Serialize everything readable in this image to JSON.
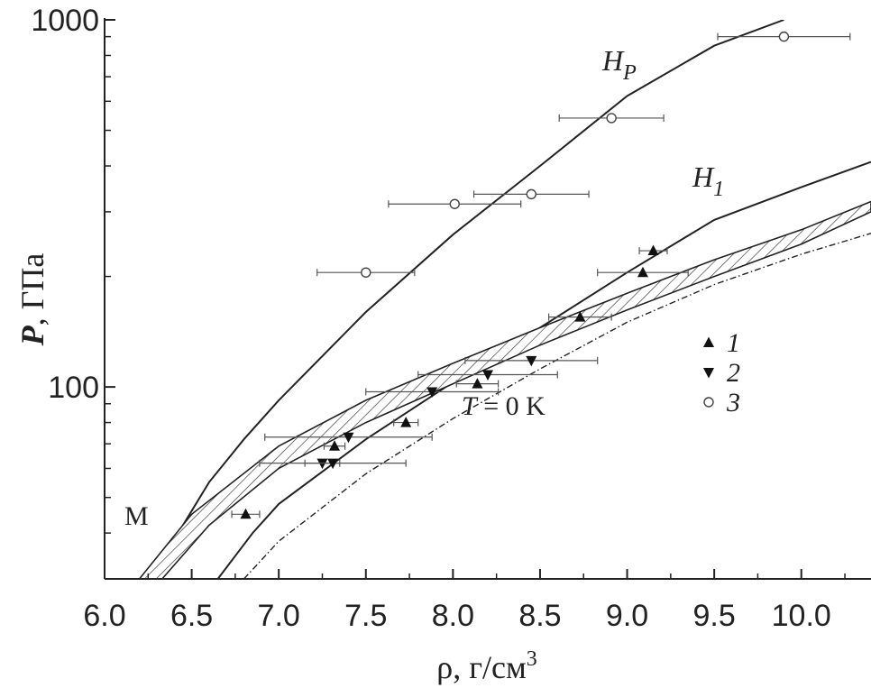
{
  "chart_data": {
    "type": "scatter",
    "title": "",
    "xlabel": "ρ, г/см",
    "xlabel_sup": "3",
    "ylabel_italic": "P",
    "ylabel_rest": ", ГПа",
    "xlim": [
      6.0,
      10.4
    ],
    "ylim": [
      30,
      1000
    ],
    "y_scale": "log",
    "grid": false,
    "x_ticks": [
      "6.0",
      "6.5",
      "7.0",
      "7.5",
      "8.0",
      "8.5",
      "9.0",
      "9.5",
      "10.0"
    ],
    "y_ticks": [
      "100",
      "1000"
    ],
    "curves": [
      {
        "name": "H_P",
        "label_main": "H",
        "label_sub": "P",
        "style": "solid",
        "points": [
          [
            6.32,
            30
          ],
          [
            6.45,
            42
          ],
          [
            6.6,
            55
          ],
          [
            6.8,
            72
          ],
          [
            7.0,
            92
          ],
          [
            7.5,
            160
          ],
          [
            8.0,
            260
          ],
          [
            8.5,
            400
          ],
          [
            9.0,
            620
          ],
          [
            9.5,
            850
          ],
          [
            9.9,
            1000
          ]
        ]
      },
      {
        "name": "H_1",
        "label_main": "H",
        "label_sub": "1",
        "style": "solid",
        "points": [
          [
            6.65,
            30
          ],
          [
            6.85,
            40
          ],
          [
            7.0,
            48
          ],
          [
            7.5,
            72
          ],
          [
            8.0,
            103
          ],
          [
            8.5,
            145
          ],
          [
            9.0,
            205
          ],
          [
            9.5,
            285
          ],
          [
            10.0,
            350
          ],
          [
            10.4,
            410
          ]
        ]
      },
      {
        "name": "T = 0 K",
        "label_main": "T",
        "label_rest": " = 0 K",
        "style": "dashdot",
        "points": [
          [
            6.8,
            30
          ],
          [
            7.0,
            38
          ],
          [
            7.5,
            58
          ],
          [
            8.0,
            82
          ],
          [
            8.5,
            112
          ],
          [
            9.0,
            150
          ],
          [
            9.5,
            190
          ],
          [
            10.0,
            230
          ],
          [
            10.4,
            262
          ]
        ]
      },
      {
        "name": "M",
        "label_main": "M",
        "style": "band",
        "upper": [
          [
            6.2,
            30
          ],
          [
            6.5,
            45
          ],
          [
            7.0,
            69
          ],
          [
            7.5,
            92
          ],
          [
            8.0,
            116
          ],
          [
            8.5,
            145
          ],
          [
            9.0,
            180
          ],
          [
            9.5,
            222
          ],
          [
            10.0,
            268
          ],
          [
            10.4,
            320
          ]
        ],
        "lower": [
          [
            6.33,
            30
          ],
          [
            6.6,
            42
          ],
          [
            7.0,
            60
          ],
          [
            7.5,
            80
          ],
          [
            8.0,
            102
          ],
          [
            8.5,
            130
          ],
          [
            9.0,
            162
          ],
          [
            9.5,
            200
          ],
          [
            10.0,
            245
          ],
          [
            10.4,
            300
          ]
        ]
      }
    ],
    "series": [
      {
        "name": "1",
        "marker": "triangle-up",
        "points": [
          {
            "x": 6.81,
            "y": 45,
            "xerr": 0.08
          },
          {
            "x": 7.32,
            "y": 69,
            "xerr": 0.06
          },
          {
            "x": 7.73,
            "y": 80,
            "xerr": 0.07
          },
          {
            "x": 8.14,
            "y": 102,
            "xerr": 0.12
          },
          {
            "x": 8.73,
            "y": 155,
            "xerr": 0.18
          },
          {
            "x": 9.09,
            "y": 205,
            "xerr": 0.26
          },
          {
            "x": 9.15,
            "y": 235,
            "xerr": 0.08
          }
        ]
      },
      {
        "name": "2",
        "marker": "triangle-down",
        "points": [
          {
            "x": 7.25,
            "y": 62,
            "xerr": 0.1
          },
          {
            "x": 7.31,
            "y": 62,
            "xerr": 0.42
          },
          {
            "x": 7.4,
            "y": 73,
            "xerr": 0.48
          },
          {
            "x": 7.88,
            "y": 97,
            "xerr": 0.38
          },
          {
            "x": 8.2,
            "y": 108,
            "xerr": 0.4
          },
          {
            "x": 8.45,
            "y": 118,
            "xerr": 0.38
          }
        ]
      },
      {
        "name": "3",
        "marker": "circle-open",
        "points": [
          {
            "x": 7.5,
            "y": 205,
            "xerr": 0.28
          },
          {
            "x": 8.01,
            "y": 315,
            "xerr": 0.38
          },
          {
            "x": 8.45,
            "y": 335,
            "xerr": 0.33
          },
          {
            "x": 8.91,
            "y": 540,
            "xerr": 0.3
          },
          {
            "x": 9.9,
            "y": 900,
            "xerr": 0.38
          }
        ]
      }
    ],
    "legend": {
      "placement": "right-center",
      "entries": [
        "1",
        "2",
        "3"
      ]
    }
  }
}
